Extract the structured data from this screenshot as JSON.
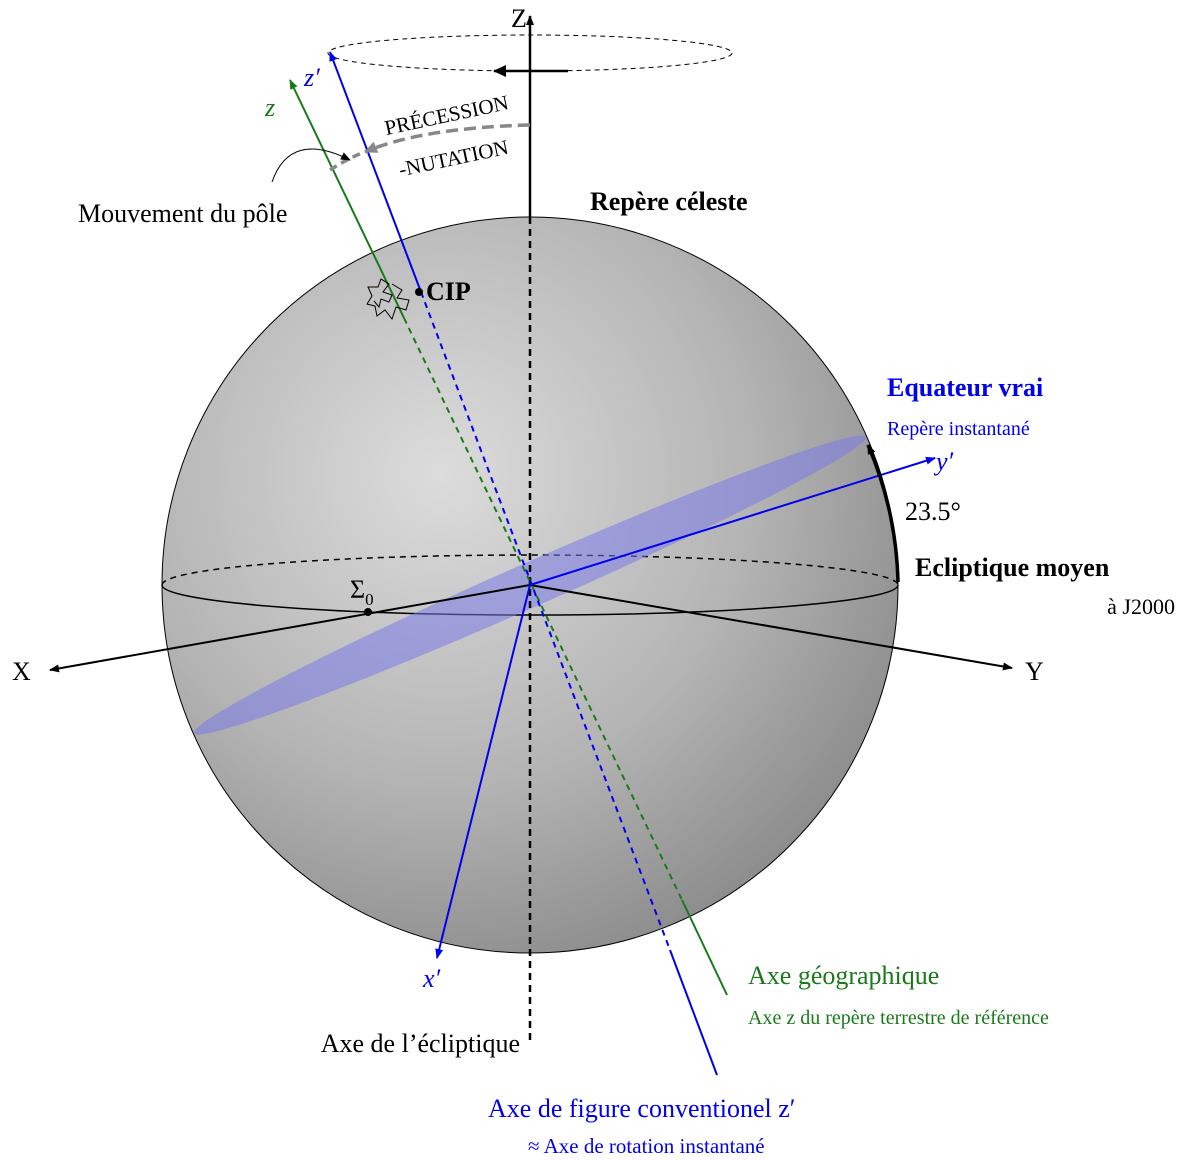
{
  "axes": {
    "Z": "Z",
    "X": "X",
    "Y": "Y",
    "z": "z",
    "z_prime": "z′",
    "x_prime": "x′",
    "y_prime": "y′"
  },
  "precession": {
    "line1": "PRÉCESSION",
    "line2": "-NUTATION"
  },
  "pole_motion": "Mouvement du pôle",
  "celestial_frame": "Repère céleste",
  "cip": "CIP",
  "true_equator": {
    "title": "Equateur vrai",
    "subtitle": "Repère instantané"
  },
  "obliquity": "23.5°",
  "mean_ecliptic": {
    "title": "Ecliptique moyen",
    "subtitle": "à J2000"
  },
  "sigma0": {
    "symbol": "Σ",
    "subscript": "0"
  },
  "geographic_axis": {
    "title": "Axe géographique",
    "subtitle": "Axe z du repère terrestre de référence"
  },
  "ecliptic_axis": "Axe de l’écliptique",
  "figure_axis": {
    "title": "Axe de figure conventionel z′",
    "subtitle": "≈  Axe de rotation instantané"
  }
}
